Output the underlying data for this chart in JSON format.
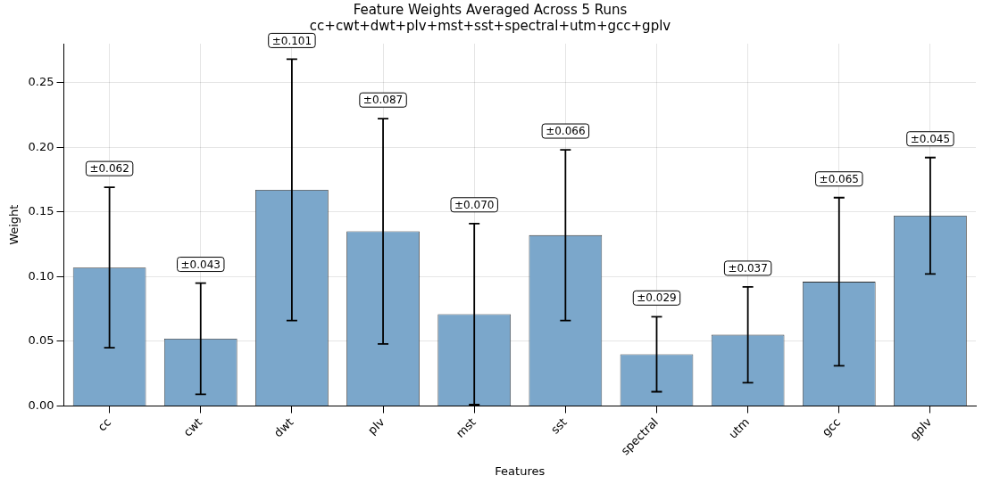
{
  "chart_data": {
    "type": "bar",
    "title": "Feature Weights Averaged Across 5 Runs",
    "subtitle": "cc+cwt+dwt+plv+mst+sst+spectral+utm+gcc+gplv",
    "xlabel": "Features",
    "ylabel": "Weight",
    "categories": [
      "cc",
      "cwt",
      "dwt",
      "plv",
      "mst",
      "sst",
      "spectral",
      "utm",
      "gcc",
      "gplv"
    ],
    "series": [
      {
        "color": "#7ba7cb",
        "values": [
          0.107,
          0.052,
          0.167,
          0.135,
          0.071,
          0.132,
          0.04,
          0.055,
          0.096,
          0.147
        ],
        "errors": [
          0.062,
          0.043,
          0.101,
          0.087,
          0.07,
          0.066,
          0.029,
          0.037,
          0.065,
          0.045
        ]
      }
    ],
    "annotations": [
      {
        "text": "±0.062",
        "x": "cc",
        "y": 0.169
      },
      {
        "text": "±0.043",
        "x": "cwt",
        "y": 0.095
      },
      {
        "text": "±0.101",
        "x": "dwt",
        "y": 0.268
      },
      {
        "text": "±0.087",
        "x": "plv",
        "y": 0.222
      },
      {
        "text": "±0.070",
        "x": "mst",
        "y": 0.141
      },
      {
        "text": "±0.066",
        "x": "sst",
        "y": 0.198
      },
      {
        "text": "±0.029",
        "x": "spectral",
        "y": 0.069
      },
      {
        "text": "±0.037",
        "x": "utm",
        "y": 0.092
      },
      {
        "text": "±0.065",
        "x": "gcc",
        "y": 0.161
      },
      {
        "text": "±0.045",
        "x": "gplv",
        "y": 0.192
      }
    ],
    "ylim": [
      0,
      0.28
    ],
    "yticks": [
      {
        "value": 0,
        "label": "0.00"
      },
      {
        "value": 0.05,
        "label": "0.05"
      },
      {
        "value": 0.1,
        "label": "0.10"
      },
      {
        "value": 0.15,
        "label": "0.15"
      },
      {
        "value": 0.2,
        "label": "0.20"
      },
      {
        "value": 0.25,
        "label": "0.25"
      }
    ],
    "grid": true,
    "legend": false
  }
}
